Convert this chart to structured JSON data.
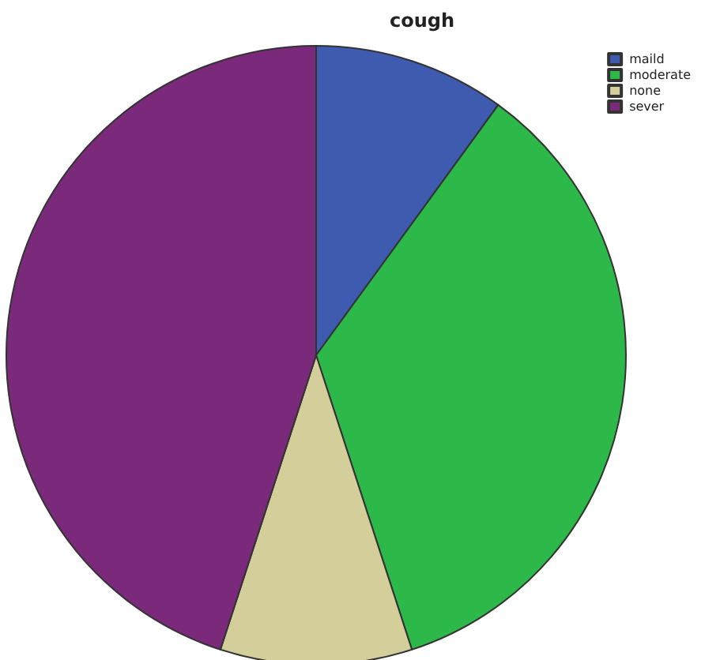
{
  "chart_data": {
    "type": "pie",
    "title": "cough",
    "categories": [
      "maild",
      "moderate",
      "none",
      "sever"
    ],
    "values": [
      10,
      35,
      10,
      45
    ],
    "colors": [
      "#3f5bb0",
      "#2db84a",
      "#d4cf9a",
      "#7b2a7b"
    ],
    "legend": "top right"
  }
}
